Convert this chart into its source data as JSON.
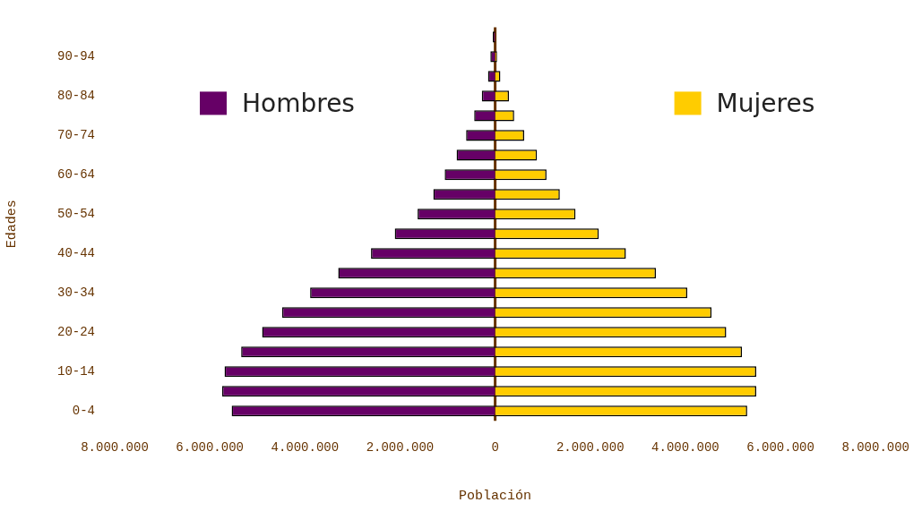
{
  "chart_data": {
    "type": "bar",
    "orientation": "horizontal",
    "stacked": true,
    "xlabel": "Población",
    "ylabel": "Edades",
    "legend": "top",
    "categories": [
      null,
      "90-94",
      null,
      "80-84",
      null,
      "70-74",
      null,
      "60-64",
      null,
      "50-54",
      null,
      "40-44",
      null,
      "30-34",
      null,
      "20-24",
      null,
      "10-14",
      null,
      "0-4"
    ],
    "series": [
      {
        "name": "Hombres",
        "color": "#660066",
        "values": [
          -50000,
          -100000,
          -150000,
          -280000,
          -440000,
          -610000,
          -810000,
          -1060000,
          -1300000,
          -1630000,
          -2110000,
          -2610000,
          -3300000,
          -3890000,
          -4480000,
          -4900000,
          -5340000,
          -5690000,
          -5740000,
          -5540000
        ]
      },
      {
        "name": "Mujeres",
        "color": "#ffcc00",
        "values": [
          null,
          40000,
          110000,
          290000,
          400000,
          610000,
          880000,
          1080000,
          1360000,
          1690000,
          2180000,
          2750000,
          3380000,
          4040000,
          4550000,
          4860000,
          5190000,
          5490000,
          5490000,
          5300000
        ]
      }
    ],
    "xlim": [
      -8000000,
      8000000
    ],
    "xticks": [
      {
        "value": -8000000,
        "label": "8.000.000"
      },
      {
        "value": -6000000,
        "label": "6.000.000"
      },
      {
        "value": -4000000,
        "label": "4.000.000"
      },
      {
        "value": -2000000,
        "label": "2.000.000"
      },
      0,
      {
        "value": 2000000,
        "label": "2.000.000"
      },
      {
        "value": 4000000,
        "label": "4.000.000"
      },
      {
        "value": 6000000,
        "label": "6.000.000"
      },
      {
        "value": 8000000,
        "label": "8.000.000"
      }
    ],
    "ref_lines": [
      {
        "axis": "x",
        "value": 0,
        "color": "#663300"
      }
    ],
    "grid": false
  }
}
